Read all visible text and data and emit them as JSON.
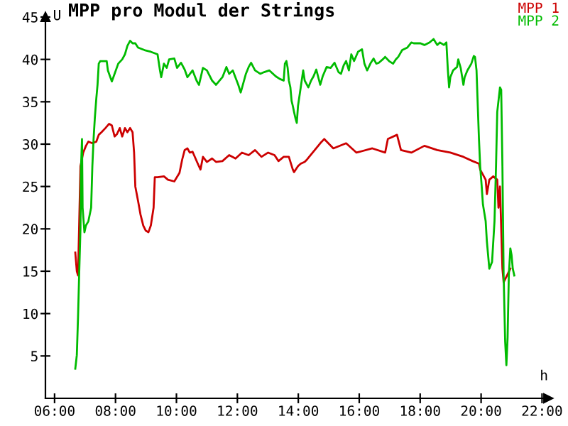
{
  "chart_data": {
    "type": "line",
    "title": "MPP pro Modul der Strings",
    "xlabel": "h",
    "ylabel": "U",
    "xlim": [
      5.7,
      22.2
    ],
    "ylim": [
      0,
      45
    ],
    "xticks": [
      {
        "value": 6,
        "label": "06:00"
      },
      {
        "value": 8,
        "label": "08:00"
      },
      {
        "value": 10,
        "label": "10:00"
      },
      {
        "value": 12,
        "label": "12:00"
      },
      {
        "value": 14,
        "label": "14:00"
      },
      {
        "value": 16,
        "label": "16:00"
      },
      {
        "value": 18,
        "label": "18:00"
      },
      {
        "value": 20,
        "label": "20:00"
      },
      {
        "value": 22,
        "label": "22:00"
      }
    ],
    "yticks": [
      5,
      10,
      15,
      20,
      25,
      30,
      35,
      40,
      45
    ],
    "grid": false,
    "legend": "top right",
    "marker": "none",
    "line_style": "solid",
    "series": [
      {
        "name": "MPP 1",
        "color": "#cc0000",
        "x": [
          6.68,
          6.73,
          6.77,
          6.81,
          6.85,
          6.94,
          7.03,
          7.11,
          7.24,
          7.37,
          7.45,
          7.54,
          7.67,
          7.79,
          7.88,
          7.97,
          8.05,
          8.14,
          8.22,
          8.31,
          8.39,
          8.48,
          8.56,
          8.61,
          8.65,
          8.74,
          8.82,
          8.91,
          8.99,
          9.08,
          9.16,
          9.25,
          9.29,
          9.38,
          9.59,
          9.72,
          9.93,
          10.1,
          10.19,
          10.27,
          10.36,
          10.44,
          10.53,
          10.7,
          10.79,
          10.87,
          11.0,
          11.17,
          11.3,
          11.51,
          11.73,
          11.94,
          12.15,
          12.37,
          12.58,
          12.79,
          13.01,
          13.22,
          13.35,
          13.52,
          13.69,
          13.82,
          13.86,
          13.99,
          14.08,
          14.21,
          14.29,
          14.72,
          14.85,
          15.15,
          15.57,
          15.91,
          16.43,
          16.85,
          16.94,
          17.24,
          17.37,
          17.71,
          18.14,
          18.56,
          18.99,
          19.42,
          19.72,
          19.93,
          19.97,
          20.15,
          20.19,
          20.27,
          20.4,
          20.53,
          20.57,
          20.62,
          20.7,
          20.74,
          20.96
        ],
        "values": [
          17.2,
          15.0,
          14.5,
          20.9,
          27.4,
          29.0,
          29.8,
          30.3,
          30.1,
          30.3,
          31.1,
          31.4,
          31.9,
          32.4,
          32.2,
          30.9,
          31.2,
          31.9,
          30.9,
          31.9,
          31.4,
          31.9,
          31.4,
          29.0,
          25.0,
          23.3,
          21.7,
          20.4,
          19.8,
          19.6,
          20.4,
          22.5,
          26.1,
          26.1,
          26.2,
          25.8,
          25.6,
          26.6,
          28.2,
          29.3,
          29.5,
          29.0,
          29.1,
          27.7,
          27.0,
          28.5,
          27.9,
          28.3,
          27.9,
          28.0,
          28.7,
          28.3,
          29.0,
          28.7,
          29.3,
          28.5,
          29.0,
          28.7,
          28.0,
          28.5,
          28.5,
          27.0,
          26.7,
          27.4,
          27.7,
          27.9,
          28.2,
          30.1,
          30.6,
          29.5,
          30.1,
          29.0,
          29.5,
          29.0,
          30.6,
          31.1,
          29.3,
          29.0,
          29.8,
          29.3,
          29.0,
          28.5,
          28.0,
          27.7,
          27.0,
          25.8,
          24.1,
          25.8,
          26.2,
          25.8,
          22.5,
          25.0,
          15.3,
          13.7,
          15.3
        ]
      },
      {
        "name": "MPP 2",
        "color": "#00bb00",
        "x": [
          6.68,
          6.73,
          6.77,
          6.81,
          6.85,
          6.87,
          6.9,
          6.92,
          6.98,
          7.03,
          7.11,
          7.2,
          7.24,
          7.28,
          7.32,
          7.37,
          7.41,
          7.45,
          7.5,
          7.71,
          7.75,
          7.88,
          7.97,
          8.09,
          8.22,
          8.31,
          8.39,
          8.48,
          8.56,
          8.65,
          8.74,
          8.95,
          9.16,
          9.38,
          9.46,
          9.5,
          9.59,
          9.68,
          9.76,
          9.93,
          10.02,
          10.15,
          10.27,
          10.36,
          10.53,
          10.66,
          10.74,
          10.87,
          11.0,
          11.17,
          11.3,
          11.51,
          11.64,
          11.73,
          11.85,
          12.03,
          12.11,
          12.15,
          12.28,
          12.37,
          12.45,
          12.58,
          12.75,
          12.88,
          13.05,
          13.26,
          13.39,
          13.52,
          13.56,
          13.61,
          13.65,
          13.69,
          13.74,
          13.78,
          13.82,
          13.86,
          13.91,
          13.95,
          13.99,
          14.08,
          14.16,
          14.21,
          14.33,
          14.42,
          14.5,
          14.59,
          14.72,
          14.8,
          14.93,
          15.06,
          15.19,
          15.32,
          15.4,
          15.49,
          15.57,
          15.66,
          15.74,
          15.83,
          15.96,
          16.09,
          16.17,
          16.26,
          16.38,
          16.47,
          16.56,
          16.64,
          16.77,
          16.85,
          16.98,
          17.11,
          17.2,
          17.28,
          17.41,
          17.58,
          17.71,
          17.79,
          18.01,
          18.14,
          18.31,
          18.44,
          18.56,
          18.65,
          18.78,
          18.86,
          18.91,
          18.95,
          18.99,
          19.08,
          19.21,
          19.25,
          19.33,
          19.42,
          19.46,
          19.55,
          19.68,
          19.76,
          19.8,
          19.85,
          19.93,
          19.97,
          20.02,
          20.06,
          20.15,
          20.19,
          20.27,
          20.36,
          20.44,
          20.49,
          20.53,
          20.62,
          20.66,
          20.7,
          20.74,
          20.79,
          20.83,
          20.87,
          20.91,
          20.96,
          21.0,
          21.04,
          21.09
        ],
        "values": [
          3.5,
          5.1,
          9.6,
          15.0,
          20.1,
          27.4,
          30.6,
          22.5,
          19.6,
          20.4,
          20.9,
          22.5,
          27.4,
          30.6,
          33.0,
          35.4,
          37.0,
          39.5,
          39.8,
          39.8,
          38.7,
          37.4,
          38.3,
          39.5,
          40.0,
          40.6,
          41.6,
          42.2,
          41.9,
          41.9,
          41.4,
          41.1,
          40.9,
          40.6,
          38.7,
          37.9,
          39.5,
          39.0,
          40.0,
          40.1,
          39.0,
          39.6,
          38.8,
          37.9,
          38.7,
          37.5,
          37.0,
          39.0,
          38.7,
          37.5,
          37.0,
          37.9,
          39.1,
          38.3,
          38.7,
          37.0,
          36.1,
          36.6,
          38.3,
          39.1,
          39.6,
          38.7,
          38.3,
          38.5,
          38.7,
          38.0,
          37.7,
          37.5,
          39.5,
          39.8,
          39.0,
          37.5,
          36.7,
          35.1,
          34.5,
          33.8,
          33.0,
          32.5,
          34.5,
          36.7,
          38.7,
          37.5,
          36.7,
          37.5,
          38.0,
          38.8,
          37.0,
          38.0,
          39.1,
          39.0,
          39.6,
          38.5,
          38.3,
          39.3,
          39.8,
          38.7,
          40.6,
          39.8,
          40.9,
          41.2,
          39.5,
          38.7,
          39.6,
          40.1,
          39.5,
          39.6,
          40.0,
          40.3,
          39.8,
          39.5,
          40.0,
          40.3,
          41.1,
          41.4,
          42.0,
          41.9,
          41.9,
          41.7,
          42.0,
          42.4,
          41.7,
          42.0,
          41.7,
          42.0,
          38.7,
          36.7,
          37.9,
          38.7,
          39.1,
          40.0,
          39.0,
          37.0,
          37.9,
          38.7,
          39.5,
          40.4,
          40.3,
          38.7,
          30.6,
          27.4,
          25.0,
          22.9,
          20.9,
          18.5,
          15.3,
          16.1,
          20.9,
          27.4,
          33.8,
          36.7,
          36.4,
          27.4,
          14.5,
          6.7,
          3.9,
          7.2,
          14.5,
          17.7,
          16.9,
          15.3,
          14.5
        ]
      }
    ]
  }
}
